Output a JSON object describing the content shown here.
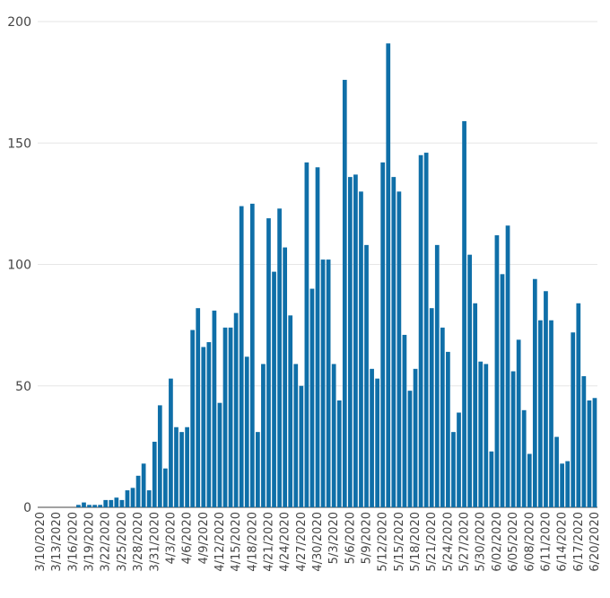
{
  "chart_data": {
    "type": "bar",
    "title": "",
    "xlabel": "",
    "ylabel": "",
    "ylim": [
      0,
      200
    ],
    "yticks": [
      0,
      50,
      100,
      150,
      200
    ],
    "grid": true,
    "bar_color": "#0f6fa8",
    "categories": [
      "3/10/2020",
      "3/11/2020",
      "3/12/2020",
      "3/13/2020",
      "3/14/2020",
      "3/15/2020",
      "3/16/2020",
      "3/17/2020",
      "3/18/2020",
      "3/19/2020",
      "3/20/2020",
      "3/21/2020",
      "3/22/2020",
      "3/23/2020",
      "3/24/2020",
      "3/25/2020",
      "3/26/2020",
      "3/27/2020",
      "3/28/2020",
      "3/29/2020",
      "3/30/2020",
      "3/31/2020",
      "4/1/2020",
      "4/2/2020",
      "4/3/2020",
      "4/4/2020",
      "4/5/2020",
      "4/6/2020",
      "4/7/2020",
      "4/8/2020",
      "4/9/2020",
      "4/10/2020",
      "4/11/2020",
      "4/12/2020",
      "4/13/2020",
      "4/14/2020",
      "4/15/2020",
      "4/16/2020",
      "4/17/2020",
      "4/18/2020",
      "4/19/2020",
      "4/20/2020",
      "4/21/2020",
      "4/22/2020",
      "4/23/2020",
      "4/24/2020",
      "4/25/2020",
      "4/26/2020",
      "4/27/2020",
      "4/28/2020",
      "4/29/2020",
      "4/30/2020",
      "5/1/2020",
      "5/2/2020",
      "5/3/2020",
      "5/4/2020",
      "5/5/2020",
      "5/6/2020",
      "5/7/2020",
      "5/8/2020",
      "5/9/2020",
      "5/10/2020",
      "5/11/2020",
      "5/12/2020",
      "5/13/2020",
      "5/14/2020",
      "5/15/2020",
      "5/16/2020",
      "5/17/2020",
      "5/18/2020",
      "5/19/2020",
      "5/20/2020",
      "5/21/2020",
      "5/22/2020",
      "5/23/2020",
      "5/24/2020",
      "5/25/2020",
      "5/26/2020",
      "5/27/2020",
      "5/28/2020",
      "5/29/2020",
      "5/30/2020",
      "5/31/2020",
      "6/01/2020",
      "6/02/2020",
      "6/03/2020",
      "6/04/2020",
      "6/05/2020",
      "6/06/2020",
      "6/07/2020",
      "6/08/2020",
      "6/09/2020",
      "6/10/2020",
      "6/11/2020",
      "6/12/2020",
      "6/13/2020",
      "6/14/2020",
      "6/15/2020",
      "6/16/2020",
      "6/17/2020",
      "6/18/2020",
      "6/19/2020",
      "6/20/2020"
    ],
    "values": [
      0,
      0,
      0,
      0,
      0,
      0,
      0,
      1,
      2,
      1,
      1,
      1,
      3,
      3,
      4,
      3,
      7,
      8,
      13,
      18,
      7,
      27,
      42,
      16,
      53,
      33,
      31,
      33,
      73,
      82,
      66,
      68,
      81,
      43,
      74,
      74,
      80,
      124,
      62,
      125,
      31,
      59,
      119,
      97,
      123,
      107,
      79,
      59,
      50,
      142,
      90,
      140,
      102,
      102,
      59,
      44,
      176,
      136,
      137,
      130,
      108,
      57,
      53,
      142,
      191,
      136,
      130,
      71,
      48,
      57,
      145,
      146,
      82,
      108,
      74,
      64,
      31,
      39,
      159,
      104,
      84,
      60,
      59,
      23,
      112,
      96,
      116,
      56,
      69,
      40,
      22,
      94,
      77,
      89,
      77,
      29,
      18,
      19,
      72,
      84,
      54,
      44,
      45
    ],
    "x_tick_labels": [
      "3/10/2020",
      "3/13/2020",
      "3/16/2020",
      "3/19/2020",
      "3/22/2020",
      "3/25/2020",
      "3/28/2020",
      "3/31/2020",
      "4/3/2020",
      "4/6/2020",
      "4/9/2020",
      "4/12/2020",
      "4/15/2020",
      "4/18/2020",
      "4/21/2020",
      "4/24/2020",
      "4/27/2020",
      "4/30/2020",
      "5/3/2020",
      "5/6/2020",
      "5/9/2020",
      "5/12/2020",
      "5/15/2020",
      "5/18/2020",
      "5/21/2020",
      "5/24/2020",
      "5/27/2020",
      "5/30/2020",
      "6/02/2020",
      "6/05/2020",
      "6/08/2020",
      "6/11/2020",
      "6/14/2020",
      "6/17/2020",
      "6/20/2020"
    ]
  }
}
